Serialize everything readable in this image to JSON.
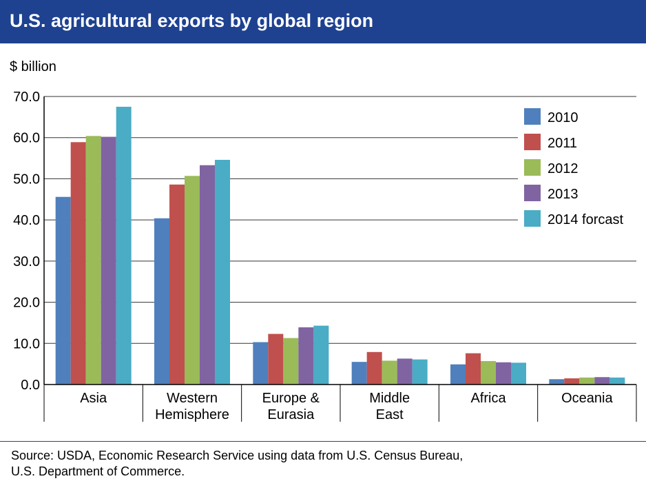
{
  "header": {
    "title": "U.S. agricultural exports by global region"
  },
  "footer": {
    "source_line1": "Source: USDA, Economic Research Service using data from U.S. Census Bureau,",
    "source_line2": "U.S. Department of Commerce."
  },
  "chart_data": {
    "type": "bar",
    "title": "U.S. agricultural exports by global region",
    "ylabel": "$ billion",
    "xlabel": "",
    "ylim": [
      0,
      70
    ],
    "yticks": [
      "0.0",
      "10.0",
      "20.0",
      "30.0",
      "40.0",
      "50.0",
      "60.0",
      "70.0"
    ],
    "grid": true,
    "legend_position": "top-right",
    "categories": [
      "Asia",
      "Western\nHemisphere",
      "Europe &\nEurasia",
      "Middle\nEast",
      "Africa",
      "Oceania"
    ],
    "series": [
      {
        "name": "2010",
        "color": "#4f80bd",
        "values": [
          45.6,
          40.4,
          10.3,
          5.5,
          4.9,
          1.3
        ]
      },
      {
        "name": "2011",
        "color": "#c0504d",
        "values": [
          58.9,
          48.6,
          12.3,
          7.9,
          7.6,
          1.5
        ]
      },
      {
        "name": "2012",
        "color": "#9bbb59",
        "values": [
          60.4,
          50.7,
          11.3,
          5.8,
          5.7,
          1.7
        ]
      },
      {
        "name": "2013",
        "color": "#8064a2",
        "values": [
          60.2,
          53.3,
          13.9,
          6.3,
          5.4,
          1.8
        ]
      },
      {
        "name": "2014 forcast",
        "color": "#4aacc5",
        "values": [
          67.5,
          54.6,
          14.3,
          6.1,
          5.3,
          1.7
        ]
      }
    ]
  }
}
